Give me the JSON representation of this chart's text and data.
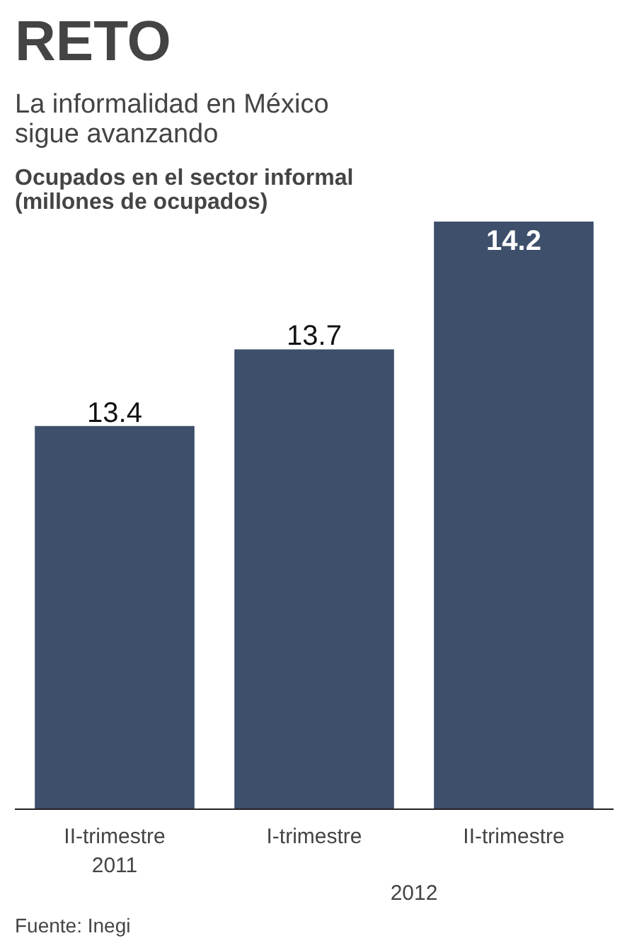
{
  "chart_data": {
    "type": "bar",
    "title": "RETO",
    "subtitle": "La informalidad en México\nsigue avanzando",
    "ylabel": "Ocupados en el sector informal\n(millones de ocupados)",
    "categories": [
      "II-trimestre\n2011",
      "I-trimestre",
      "II-trimestre"
    ],
    "values": [
      13.4,
      13.7,
      14.2
    ],
    "color": "#3d4f6b",
    "ylim": [
      11.9,
      14.2
    ],
    "data_labels": true,
    "grid": false,
    "annotations": [
      "2012",
      "Fuente: Inegi"
    ]
  }
}
